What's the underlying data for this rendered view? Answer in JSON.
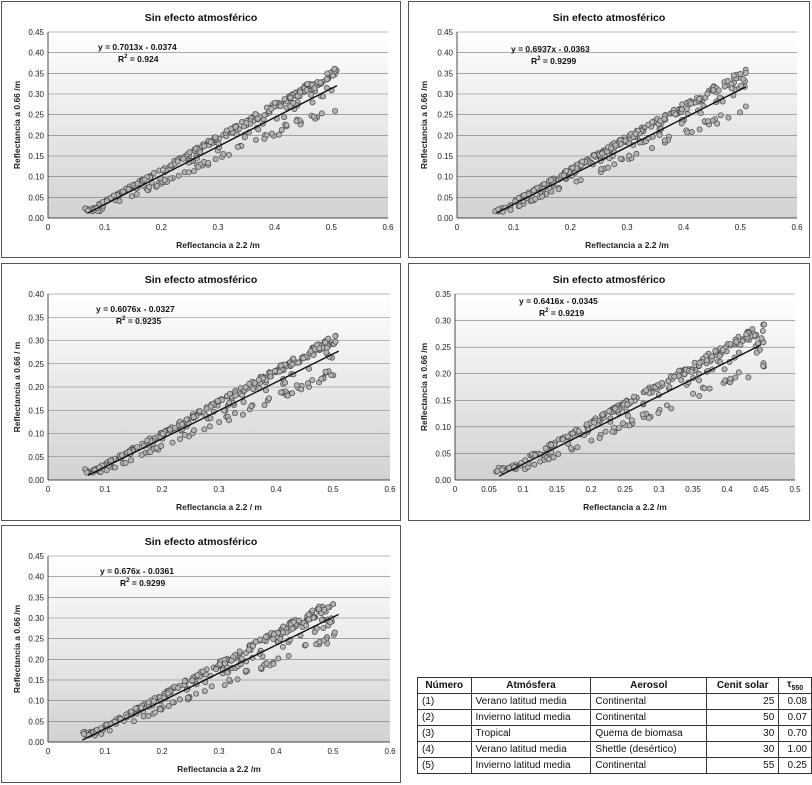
{
  "chart_data": [
    {
      "type": "scatter",
      "title": "Sin efecto atmosférico",
      "xlabel": "Reflectancia a 2.2  /m",
      "ylabel": "Reflectancia a 0.66  /m",
      "xlim": [
        0,
        0.6
      ],
      "ylim": [
        0,
        0.45
      ],
      "xticks": [
        "0",
        "0.1",
        "0.2",
        "0.3",
        "0.4",
        "0.5",
        "0.6"
      ],
      "yticks": [
        "0.00",
        "0.05",
        "0.10",
        "0.15",
        "0.20",
        "0.25",
        "0.30",
        "0.35",
        "0.40",
        "0.45"
      ],
      "equation": "y = 0.7013x - 0.0374",
      "r2_label": "R",
      "r2_sup": "2",
      "r2_value": " = 0.924",
      "fit": {
        "slope": 0.7013,
        "intercept": -0.0374,
        "x_range": [
          0.07,
          0.51
        ]
      },
      "x_range": [
        0.065,
        0.51
      ],
      "spread": 0.04,
      "seed": 11,
      "grid": true
    },
    {
      "type": "scatter",
      "title": "Sin efecto atmosférico",
      "xlabel": "Reflectancia a 2.2  /m",
      "ylabel": "Reflectancia a 0.66  /m",
      "xlim": [
        0,
        0.6
      ],
      "ylim": [
        0,
        0.45
      ],
      "xticks": [
        "0",
        "0.1",
        "0.2",
        "0.3",
        "0.4",
        "0.5",
        "0.6"
      ],
      "yticks": [
        "0.00",
        "0.05",
        "0.10",
        "0.15",
        "0.20",
        "0.25",
        "0.30",
        "0.35",
        "0.40",
        "0.45"
      ],
      "equation": "y = 0.6937x - 0.0363",
      "r2_label": "R",
      "r2_sup": "2",
      "r2_value": " = 0.9299",
      "fit": {
        "slope": 0.6937,
        "intercept": -0.0363,
        "x_range": [
          0.07,
          0.51
        ]
      },
      "x_range": [
        0.065,
        0.51
      ],
      "spread": 0.04,
      "seed": 23,
      "grid": true
    },
    {
      "type": "scatter",
      "title": "Sin efecto atmosférico",
      "xlabel": "Reflectancia a 2.2  / m",
      "ylabel": "Reflectancia a 0.66  / m",
      "xlim": [
        0,
        0.6
      ],
      "ylim": [
        0,
        0.4
      ],
      "xticks": [
        "0",
        "0.1",
        "0.2",
        "0.3",
        "0.4",
        "0.5",
        "0.6"
      ],
      "yticks": [
        "0.00",
        "0.05",
        "0.10",
        "0.15",
        "0.20",
        "0.25",
        "0.30",
        "0.35",
        "0.40"
      ],
      "equation": "y = 0.6076x - 0.0327",
      "r2_label": "R",
      "r2_sup": "2",
      "r2_value": " = 0.9235",
      "fit": {
        "slope": 0.6076,
        "intercept": -0.0327,
        "x_range": [
          0.07,
          0.51
        ]
      },
      "x_range": [
        0.065,
        0.51
      ],
      "spread": 0.035,
      "seed": 37,
      "grid": true
    },
    {
      "type": "scatter",
      "title": "Sin efecto atmosférico",
      "xlabel": "Reflectancia a 2.2  /m",
      "ylabel": "Reflectancia a 0.66  /m",
      "xlim": [
        0,
        0.5
      ],
      "ylim": [
        0,
        0.35
      ],
      "xticks": [
        "0",
        "0.05",
        "0.1",
        "0.15",
        "0.2",
        "0.25",
        "0.3",
        "0.35",
        "0.4",
        "0.45",
        "0.5"
      ],
      "yticks": [
        "0.00",
        "0.05",
        "0.10",
        "0.15",
        "0.20",
        "0.25",
        "0.30",
        "0.35"
      ],
      "equation": "y = 0.6416x - 0.0345",
      "r2_label": "R",
      "r2_sup": "2",
      "r2_value": " = 0.9219",
      "fit": {
        "slope": 0.6416,
        "intercept": -0.0345,
        "x_range": [
          0.065,
          0.45
        ]
      },
      "x_range": [
        0.06,
        0.455
      ],
      "spread": 0.035,
      "seed": 53,
      "grid": true
    },
    {
      "type": "scatter",
      "title": "Sin efecto atmosférico",
      "xlabel": "Reflectancia a 2.2  /m",
      "ylabel": "Reflectancia a 0.66  /m",
      "xlim": [
        0,
        0.6
      ],
      "ylim": [
        0,
        0.45
      ],
      "xticks": [
        "0",
        "0.1",
        "0.2",
        "0.3",
        "0.4",
        "0.5",
        "0.6"
      ],
      "yticks": [
        "0.00",
        "0.05",
        "0.10",
        "0.15",
        "0.20",
        "0.25",
        "0.30",
        "0.35",
        "0.40",
        "0.45"
      ],
      "equation": "y = 0.676x - 0.0361",
      "r2_label": "R",
      "r2_sup": "2",
      "r2_value": " = 0.9299",
      "fit": {
        "slope": 0.676,
        "intercept": -0.0361,
        "x_range": [
          0.06,
          0.51
        ]
      },
      "x_range": [
        0.06,
        0.51
      ],
      "spread": 0.04,
      "seed": 71,
      "grid": true
    }
  ],
  "legend_table": {
    "headers": {
      "numero": "Número",
      "atmosfera": "Atmósfera",
      "aerosol": "Aerosol",
      "cenit": "Cenit solar",
      "tau": "τ",
      "tau_sub": "550"
    },
    "rows": [
      {
        "numero": "(1)",
        "atmosfera": "Verano latitud media",
        "aerosol": "Continental",
        "cenit": "25",
        "tau": "0.08"
      },
      {
        "numero": "(2)",
        "atmosfera": "Invierno latitud media",
        "aerosol": "Continental",
        "cenit": "50",
        "tau": "0.07"
      },
      {
        "numero": "(3)",
        "atmosfera": "Tropical",
        "aerosol": "Quema de biomasa",
        "cenit": "30",
        "tau": "0.70"
      },
      {
        "numero": "(4)",
        "atmosfera": "Verano latitud media",
        "aerosol": "Shettle (desértico)",
        "cenit": "30",
        "tau": "1.00"
      },
      {
        "numero": "(5)",
        "atmosfera": "Invierno latitud media",
        "aerosol": "Continental",
        "cenit": "55",
        "tau": "0.25"
      }
    ]
  },
  "colors": {
    "point_fill": "#b4b4b4",
    "point_stroke": "#4a4a4a",
    "fit_line": "#111111",
    "grid": "#777777",
    "plot_top": "#ffffff",
    "plot_bottom": "#d2d2d2"
  }
}
